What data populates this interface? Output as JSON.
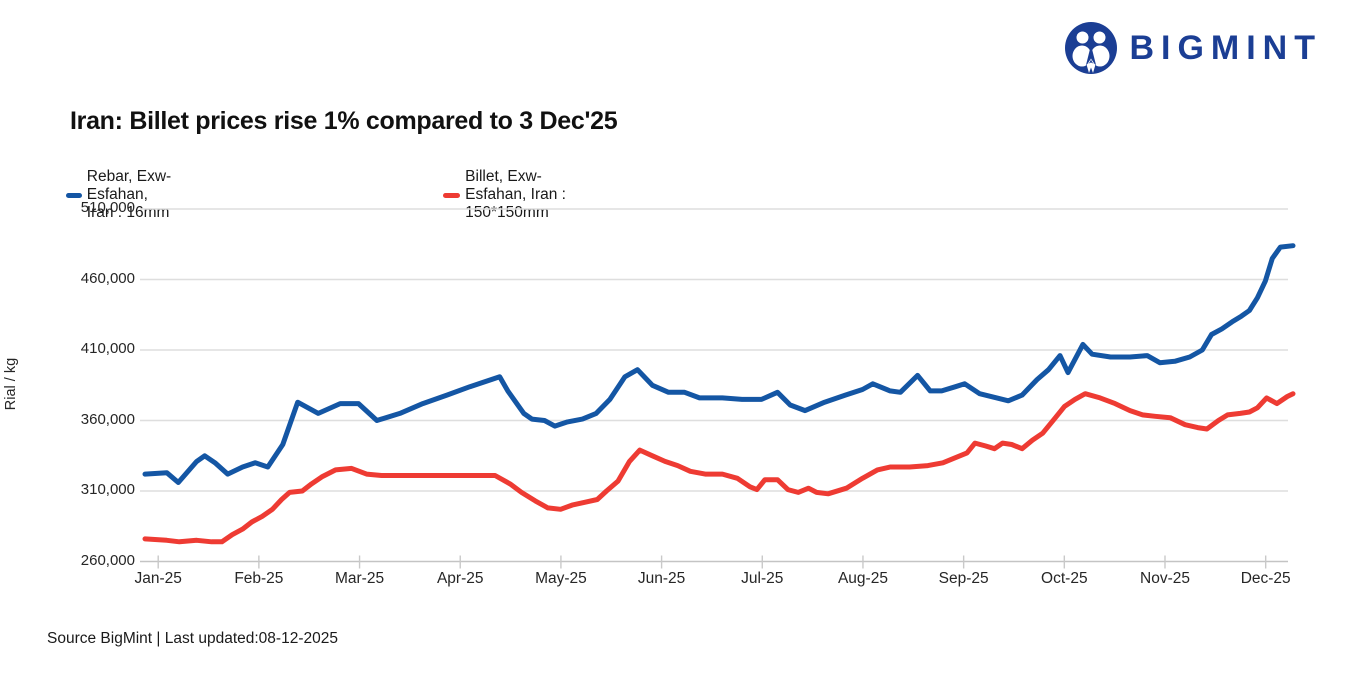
{
  "logo": {
    "text": "BIGMINT",
    "color": "#1b3e94",
    "icon": "two-people-circle"
  },
  "title": "Iran: Billet prices rise 1% compared to 3 Dec'25",
  "legend": {
    "items": [
      {
        "label": "Rebar, Exw-Esfahan, Iran : 16mm",
        "color": "#1456a4"
      },
      {
        "label": "Billet, Exw-Esfahan, Iran : 150*150mm",
        "color": "#ee3b33"
      }
    ]
  },
  "footer": {
    "text": "Source BigMint | Last updated:08-12-2025"
  },
  "chart_data": {
    "type": "line",
    "title": "Iran: Billet prices rise 1% compared to 3 Dec'25",
    "xlabel": "",
    "ylabel": "Rial / kg",
    "ylim": [
      260000,
      510000
    ],
    "ytick_step": 50000,
    "ytick_labels": [
      "510,000",
      "460,000",
      "410,000",
      "360,000",
      "310,000",
      "260,000"
    ],
    "x_categories": [
      "Jan-25",
      "Feb-25",
      "Mar-25",
      "Apr-25",
      "May-25",
      "Jun-25",
      "Jul-25",
      "Aug-25",
      "Sep-25",
      "Oct-25",
      "Nov-25",
      "Dec-25"
    ],
    "grid": "horizontal",
    "legend_position": "top-left",
    "colors": {
      "grid": "#dedede",
      "axis": "#c4c4c4",
      "tick": "#c9c9c9"
    },
    "series": [
      {
        "name": "Rebar, Exw-Esfahan, Iran : 16mm",
        "color": "#1456a4",
        "points": [
          [
            0.0,
            322000
          ],
          [
            0.019,
            323000
          ],
          [
            0.029,
            316000
          ],
          [
            0.045,
            331000
          ],
          [
            0.052,
            335000
          ],
          [
            0.061,
            330000
          ],
          [
            0.072,
            322000
          ],
          [
            0.085,
            327000
          ],
          [
            0.096,
            330000
          ],
          [
            0.107,
            327000
          ],
          [
            0.12,
            343000
          ],
          [
            0.133,
            373000
          ],
          [
            0.151,
            365000
          ],
          [
            0.17,
            372000
          ],
          [
            0.186,
            372000
          ],
          [
            0.202,
            360000
          ],
          [
            0.222,
            365000
          ],
          [
            0.242,
            372000
          ],
          [
            0.263,
            378000
          ],
          [
            0.283,
            384000
          ],
          [
            0.309,
            391000
          ],
          [
            0.316,
            381000
          ],
          [
            0.323,
            373000
          ],
          [
            0.33,
            365000
          ],
          [
            0.337,
            361000
          ],
          [
            0.348,
            360000
          ],
          [
            0.357,
            356000
          ],
          [
            0.368,
            359000
          ],
          [
            0.381,
            361000
          ],
          [
            0.393,
            365000
          ],
          [
            0.405,
            375000
          ],
          [
            0.418,
            391000
          ],
          [
            0.429,
            396000
          ],
          [
            0.442,
            385000
          ],
          [
            0.456,
            380000
          ],
          [
            0.47,
            380000
          ],
          [
            0.483,
            376000
          ],
          [
            0.503,
            376000
          ],
          [
            0.52,
            375000
          ],
          [
            0.537,
            375000
          ],
          [
            0.551,
            380000
          ],
          [
            0.562,
            371000
          ],
          [
            0.575,
            367000
          ],
          [
            0.592,
            373000
          ],
          [
            0.61,
            378000
          ],
          [
            0.625,
            382000
          ],
          [
            0.634,
            386000
          ],
          [
            0.649,
            381000
          ],
          [
            0.658,
            380000
          ],
          [
            0.673,
            392000
          ],
          [
            0.684,
            381000
          ],
          [
            0.694,
            381000
          ],
          [
            0.706,
            384000
          ],
          [
            0.714,
            386000
          ],
          [
            0.727,
            379000
          ],
          [
            0.742,
            376000
          ],
          [
            0.752,
            374000
          ],
          [
            0.764,
            378000
          ],
          [
            0.777,
            389000
          ],
          [
            0.787,
            396000
          ],
          [
            0.797,
            406000
          ],
          [
            0.804,
            394000
          ],
          [
            0.817,
            414000
          ],
          [
            0.825,
            407000
          ],
          [
            0.841,
            405000
          ],
          [
            0.858,
            405000
          ],
          [
            0.873,
            406000
          ],
          [
            0.884,
            401000
          ],
          [
            0.897,
            402000
          ],
          [
            0.91,
            405000
          ],
          [
            0.921,
            410000
          ],
          [
            0.929,
            421000
          ],
          [
            0.938,
            425000
          ],
          [
            0.947,
            430000
          ],
          [
            0.955,
            434000
          ],
          [
            0.962,
            438000
          ],
          [
            0.969,
            447000
          ],
          [
            0.976,
            459000
          ],
          [
            0.982,
            475000
          ],
          [
            0.989,
            483000
          ],
          [
            1.0,
            484000
          ]
        ]
      },
      {
        "name": "Billet, Exw-Esfahan, Iran : 150*150mm",
        "color": "#ee3b33",
        "points": [
          [
            0.0,
            276000
          ],
          [
            0.019,
            275000
          ],
          [
            0.03,
            274000
          ],
          [
            0.045,
            275000
          ],
          [
            0.058,
            274000
          ],
          [
            0.067,
            274000
          ],
          [
            0.076,
            279000
          ],
          [
            0.085,
            283000
          ],
          [
            0.093,
            288000
          ],
          [
            0.102,
            292000
          ],
          [
            0.111,
            297000
          ],
          [
            0.119,
            304000
          ],
          [
            0.126,
            309000
          ],
          [
            0.137,
            310000
          ],
          [
            0.145,
            315000
          ],
          [
            0.154,
            320000
          ],
          [
            0.166,
            325000
          ],
          [
            0.18,
            326000
          ],
          [
            0.193,
            322000
          ],
          [
            0.206,
            321000
          ],
          [
            0.231,
            321000
          ],
          [
            0.257,
            321000
          ],
          [
            0.283,
            321000
          ],
          [
            0.305,
            321000
          ],
          [
            0.318,
            315000
          ],
          [
            0.328,
            309000
          ],
          [
            0.34,
            303000
          ],
          [
            0.351,
            298000
          ],
          [
            0.362,
            297000
          ],
          [
            0.372,
            300000
          ],
          [
            0.383,
            302000
          ],
          [
            0.394,
            304000
          ],
          [
            0.402,
            310000
          ],
          [
            0.412,
            317000
          ],
          [
            0.422,
            331000
          ],
          [
            0.431,
            339000
          ],
          [
            0.442,
            335000
          ],
          [
            0.453,
            331000
          ],
          [
            0.464,
            328000
          ],
          [
            0.475,
            324000
          ],
          [
            0.488,
            322000
          ],
          [
            0.503,
            322000
          ],
          [
            0.516,
            319000
          ],
          [
            0.527,
            313000
          ],
          [
            0.533,
            311000
          ],
          [
            0.54,
            318000
          ],
          [
            0.551,
            318000
          ],
          [
            0.56,
            311000
          ],
          [
            0.569,
            309000
          ],
          [
            0.578,
            312000
          ],
          [
            0.585,
            309000
          ],
          [
            0.595,
            308000
          ],
          [
            0.611,
            312000
          ],
          [
            0.625,
            319000
          ],
          [
            0.638,
            325000
          ],
          [
            0.649,
            327000
          ],
          [
            0.666,
            327000
          ],
          [
            0.682,
            328000
          ],
          [
            0.695,
            330000
          ],
          [
            0.707,
            334000
          ],
          [
            0.716,
            337000
          ],
          [
            0.723,
            344000
          ],
          [
            0.732,
            342000
          ],
          [
            0.74,
            340000
          ],
          [
            0.747,
            344000
          ],
          [
            0.755,
            343000
          ],
          [
            0.764,
            340000
          ],
          [
            0.773,
            346000
          ],
          [
            0.782,
            351000
          ],
          [
            0.793,
            362000
          ],
          [
            0.801,
            370000
          ],
          [
            0.81,
            375000
          ],
          [
            0.819,
            379000
          ],
          [
            0.832,
            376000
          ],
          [
            0.845,
            372000
          ],
          [
            0.858,
            367000
          ],
          [
            0.869,
            364000
          ],
          [
            0.88,
            363000
          ],
          [
            0.893,
            362000
          ],
          [
            0.906,
            357000
          ],
          [
            0.917,
            355000
          ],
          [
            0.925,
            354000
          ],
          [
            0.935,
            360000
          ],
          [
            0.943,
            364000
          ],
          [
            0.954,
            365000
          ],
          [
            0.962,
            366000
          ],
          [
            0.969,
            369000
          ],
          [
            0.977,
            376000
          ],
          [
            0.986,
            372000
          ],
          [
            0.995,
            377000
          ],
          [
            1.0,
            379000
          ]
        ]
      }
    ]
  }
}
